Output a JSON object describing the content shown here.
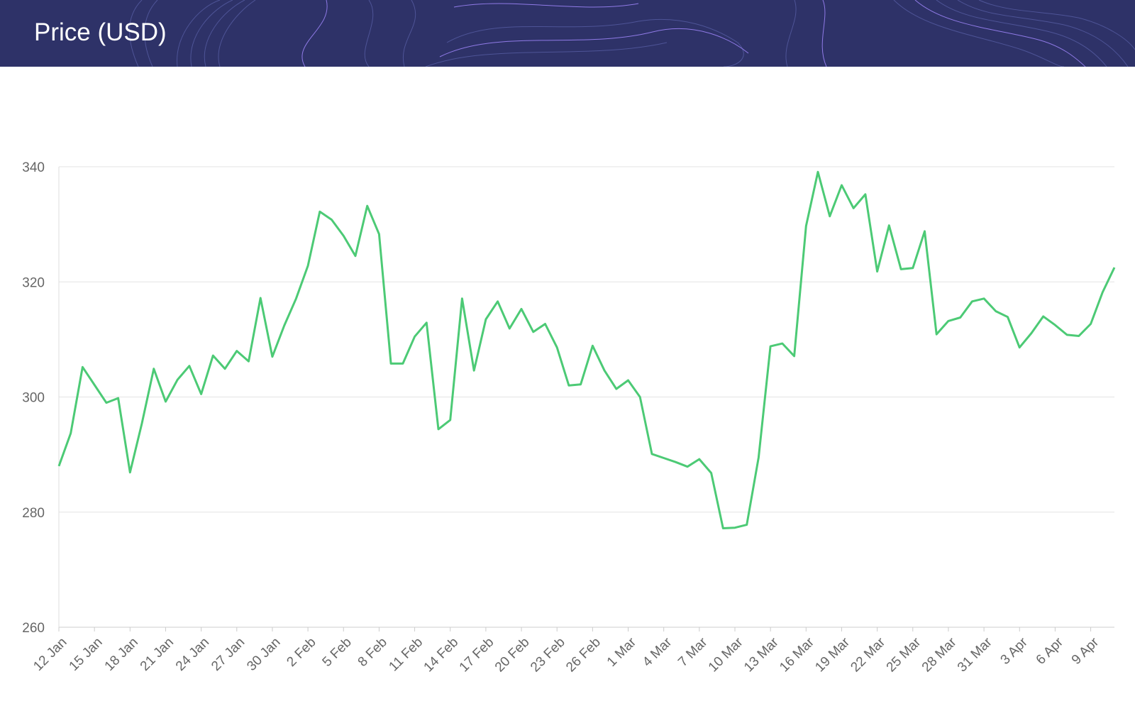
{
  "header": {
    "title": "Price (USD)",
    "background": "#2e3268",
    "contour_color": "#5a5fa8",
    "accent_contour_color": "#8f7ae6"
  },
  "chart_data": {
    "type": "line",
    "title": "Price (USD)",
    "xlabel": "",
    "ylabel": "",
    "ylim": [
      260,
      340
    ],
    "yticks": [
      260,
      280,
      300,
      320,
      340
    ],
    "grid": true,
    "legend": "none",
    "line_color": "#4cca75",
    "start_label": "12 Jan",
    "xtick_labels": [
      "12 Jan",
      "15 Jan",
      "18 Jan",
      "21 Jan",
      "24 Jan",
      "27 Jan",
      "30 Jan",
      "2 Feb",
      "5 Feb",
      "8 Feb",
      "11 Feb",
      "14 Feb",
      "17 Feb",
      "20 Feb",
      "23 Feb",
      "26 Feb",
      "1 Mar",
      "4 Mar",
      "7 Mar",
      "10 Mar",
      "13 Mar",
      "16 Mar",
      "19 Mar",
      "22 Mar",
      "25 Mar",
      "28 Mar",
      "31 Mar",
      "3 Apr",
      "6 Apr",
      "9 Apr"
    ],
    "series": [
      {
        "values": [
          288,
          293.7,
          305.2,
          302.1,
          299,
          299.8,
          286.9,
          295.4,
          304.9,
          299.2,
          303,
          305.4,
          300.5,
          307.2,
          304.9,
          308,
          306.2,
          317.2,
          307,
          312.4,
          317.1,
          322.8,
          332.2,
          330.8,
          328,
          324.5,
          333.2,
          328.3,
          305.8,
          305.8,
          310.5,
          312.9,
          294.4,
          296,
          317.1,
          304.6,
          313.5,
          316.6,
          311.9,
          315.3,
          311.3,
          312.7,
          308.6,
          302,
          302.2,
          308.9,
          304.6,
          301.4,
          302.9,
          300,
          290.1,
          289.4,
          288.7,
          287.9,
          289.2,
          286.8,
          277.2,
          277.3,
          277.8,
          289.5,
          308.8,
          309.3,
          307.1,
          329.7,
          339.1,
          331.4,
          336.8,
          332.8,
          335.2,
          321.8,
          329.8,
          322.2,
          322.4,
          328.8,
          310.9,
          313.2,
          313.8,
          316.6,
          317.1,
          314.9,
          313.9,
          308.6,
          311.1,
          314,
          312.5,
          310.8,
          310.6,
          312.7,
          318.2,
          322.5
        ]
      }
    ]
  }
}
